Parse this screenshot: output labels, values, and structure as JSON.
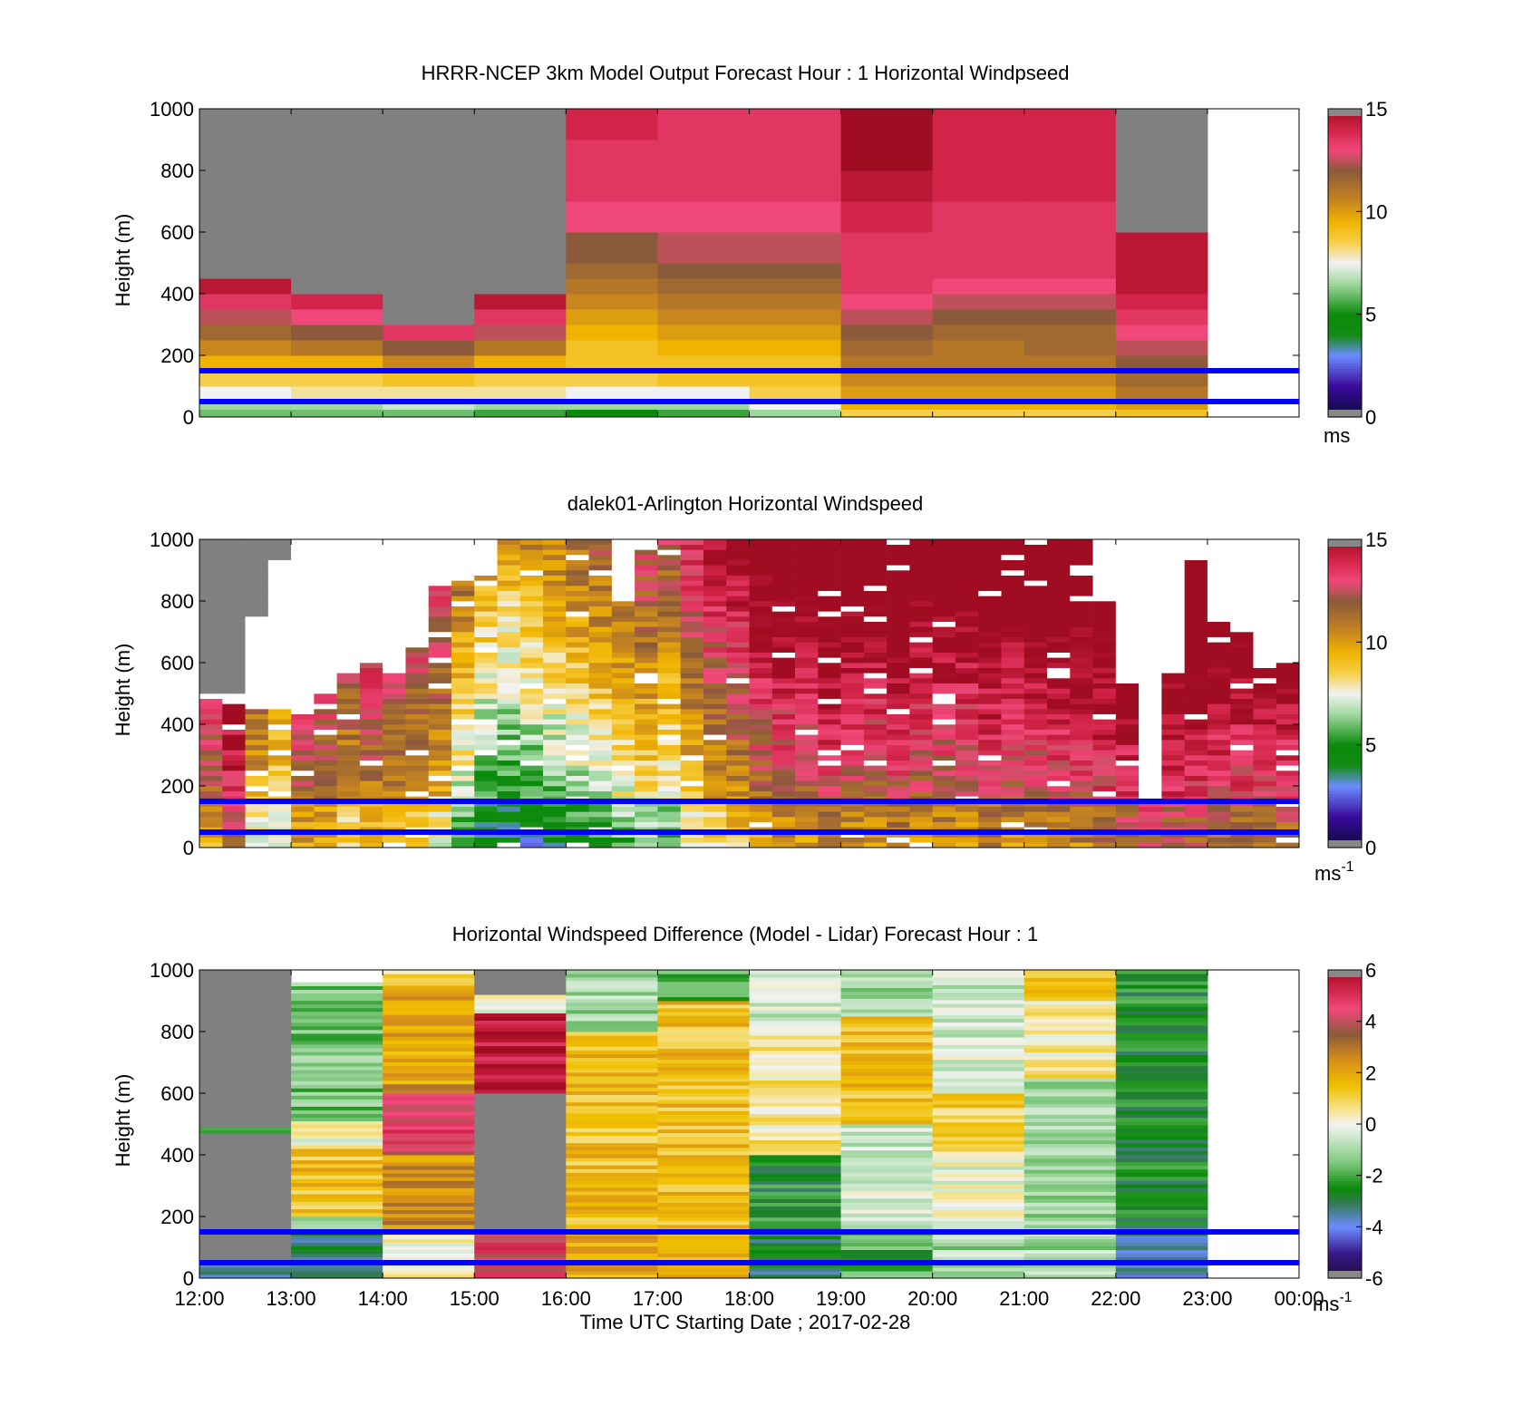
{
  "figure": {
    "xlabel": "Time UTC  Starting Date ; 2017-02-28",
    "x_tick_labels": [
      "12:00",
      "13:00",
      "14:00",
      "15:00",
      "16:00",
      "17:00",
      "18:00",
      "19:00",
      "20:00",
      "21:00",
      "22:00",
      "23:00",
      "00:00"
    ],
    "reference_lines_m": [
      50,
      150
    ],
    "reference_line_color": "#0000ff",
    "missing_color": "#808080"
  },
  "chart_data": [
    {
      "type": "heatmap",
      "title": "HRRR-NCEP 3km Model Output   Forecast Hour : 1 Horizontal Windpseed",
      "ylabel": "Height (m)",
      "xlim": [
        "12:00",
        "00:00"
      ],
      "ylim": [
        0,
        1000
      ],
      "y_ticks": [
        0,
        200,
        400,
        600,
        800,
        1000
      ],
      "colorbar": {
        "min": 0,
        "max": 15,
        "ticks": [
          0,
          5,
          10,
          15
        ],
        "unit": "ms",
        "unit_sup": ""
      },
      "column_hours_utc": [
        "12:00",
        "13:00",
        "14:00",
        "15:00",
        "16:00",
        "17:00",
        "18:00",
        "19:00",
        "20:00",
        "21:00",
        "22:00"
      ],
      "level_tops_m": [
        25,
        50,
        100,
        150,
        200,
        250,
        300,
        350,
        400,
        450,
        500,
        600,
        700,
        800,
        900,
        1000
      ],
      "values_ms": [
        [
          6,
          6.5,
          7.5,
          8.5,
          9.5,
          10.5,
          11.5,
          12.5,
          13.5,
          14.5,
          null,
          null,
          null,
          null,
          null,
          null
        ],
        [
          6,
          6.5,
          8,
          8.5,
          9.5,
          11,
          12,
          13,
          14,
          null,
          null,
          null,
          null,
          null,
          null,
          null
        ],
        [
          6,
          7,
          8,
          9,
          10.5,
          12,
          13.5,
          null,
          null,
          null,
          null,
          null,
          null,
          null,
          null,
          null
        ],
        [
          5.5,
          6.5,
          8,
          8.5,
          9.5,
          11,
          12.5,
          13.5,
          14.5,
          null,
          null,
          null,
          null,
          null,
          null,
          null
        ],
        [
          5,
          6.5,
          7.5,
          8.5,
          9,
          9,
          9.5,
          10,
          10.5,
          11,
          11.5,
          12,
          13,
          13.5,
          13.5,
          14
        ],
        [
          5.5,
          6.5,
          7.5,
          9,
          9,
          9.5,
          10,
          10.5,
          11,
          11.5,
          12,
          12.5,
          13,
          13.5,
          13.5,
          13.5
        ],
        [
          6.5,
          7.5,
          8.5,
          9,
          9,
          9.5,
          10,
          10.5,
          11,
          11.5,
          12,
          12.5,
          13,
          13.5,
          13.5,
          13.5
        ],
        [
          8.5,
          9.5,
          10,
          10.5,
          11,
          11.5,
          12,
          12.5,
          13,
          13.5,
          13.5,
          13.5,
          14,
          14.5,
          15,
          15
        ],
        [
          8.5,
          9.5,
          10,
          10.5,
          11,
          11,
          11.5,
          12,
          12.5,
          13,
          13.5,
          13.5,
          13.5,
          14,
          14,
          14
        ],
        [
          8.5,
          9.5,
          10,
          10.5,
          11,
          11.5,
          11.5,
          12,
          12.5,
          13,
          13.5,
          13.5,
          13.5,
          14,
          14,
          14
        ],
        [
          9,
          10,
          11,
          11.5,
          12,
          12.5,
          13,
          13.5,
          14,
          14.5,
          14.5,
          14.5,
          null,
          null,
          null,
          null
        ]
      ]
    },
    {
      "type": "heatmap",
      "title": "dalek01-Arlington  Horizontal Windspeed",
      "ylabel": "Height (m)",
      "xlim": [
        "12:00",
        "00:00"
      ],
      "ylim": [
        0,
        1000
      ],
      "y_ticks": [
        0,
        200,
        400,
        600,
        800,
        1000
      ],
      "colorbar": {
        "min": 0,
        "max": 15,
        "ticks": [
          0,
          5,
          10,
          15
        ],
        "unit": "ms",
        "unit_sup": "-1"
      },
      "columns_per_hour": 4,
      "profiles": [
        {
          "hour": "12:00",
          "w": 12,
          "top": 480,
          "gap_top": 500
        },
        {
          "hour": "12:15",
          "w": 14,
          "top": 460,
          "gap_top": 500
        },
        {
          "hour": "12:30",
          "w": 10,
          "top": 450,
          "gap_top": 750
        },
        {
          "hour": "12:45",
          "w": 9,
          "top": 440,
          "gap_top": 920
        },
        {
          "hour": "13:00",
          "w": 12,
          "top": 420,
          "gap_top": 1000
        },
        {
          "hour": "13:15",
          "w": 11.5,
          "top": 490,
          "gap_top": 1000
        },
        {
          "hour": "13:30",
          "w": 10.5,
          "top": 560,
          "gap_top": 1000
        },
        {
          "hour": "13:45",
          "w": 11.5,
          "top": 600,
          "gap_top": 1000
        },
        {
          "hour": "14:00",
          "w": 11,
          "top": 560,
          "gap_top": 1000
        },
        {
          "hour": "14:15",
          "w": 10.5,
          "top": 640,
          "gap_top": 1000
        },
        {
          "hour": "14:30",
          "w": 10,
          "top": 850,
          "gap_top": 1000
        },
        {
          "hour": "14:45",
          "w": 7.5,
          "top": 860,
          "gap_top": 1000
        },
        {
          "hour": "15:00",
          "w": 6,
          "top": 870,
          "gap_top": 1000
        },
        {
          "hour": "15:15",
          "w": 5.5,
          "top": 1000,
          "gap_top": 1000
        },
        {
          "hour": "15:30",
          "w": 6,
          "top": 1000,
          "gap_top": 1000
        },
        {
          "hour": "15:45",
          "w": 6.5,
          "top": 1000,
          "gap_top": 1000
        },
        {
          "hour": "16:00",
          "w": 7,
          "top": 1000,
          "gap_top": 1000
        },
        {
          "hour": "16:15",
          "w": 7.5,
          "top": 1000,
          "gap_top": 1000
        },
        {
          "hour": "16:30",
          "w": 8,
          "top": 790,
          "gap_top": 1000
        },
        {
          "hour": "16:45",
          "w": 8.5,
          "top": 960,
          "gap_top": 1000
        },
        {
          "hour": "17:00",
          "w": 8,
          "top": 1000,
          "gap_top": 1000
        },
        {
          "hour": "17:15",
          "w": 9.5,
          "top": 1000,
          "gap_top": 1000
        },
        {
          "hour": "17:30",
          "w": 10.5,
          "top": 1000,
          "gap_top": 1000
        },
        {
          "hour": "17:45",
          "w": 11,
          "top": 1000,
          "gap_top": 1000
        },
        {
          "hour": "18:00",
          "w": 12,
          "top": 1000,
          "gap_top": 1000
        },
        {
          "hour": "18:15",
          "w": 12.5,
          "top": 1000,
          "gap_top": 1000
        },
        {
          "hour": "18:30",
          "w": 12.5,
          "top": 1000,
          "gap_top": 1000
        },
        {
          "hour": "18:45",
          "w": 13,
          "top": 1000,
          "gap_top": 1000
        },
        {
          "hour": "19:00",
          "w": 12.5,
          "top": 1000,
          "gap_top": 1000
        },
        {
          "hour": "19:15",
          "w": 12.5,
          "top": 1000,
          "gap_top": 1000
        },
        {
          "hour": "19:30",
          "w": 13,
          "top": 1000,
          "gap_top": 1000
        },
        {
          "hour": "19:45",
          "w": 12.5,
          "top": 1000,
          "gap_top": 1000
        },
        {
          "hour": "20:00",
          "w": 12.5,
          "top": 1000,
          "gap_top": 1000
        },
        {
          "hour": "20:15",
          "w": 12.5,
          "top": 1000,
          "gap_top": 1000
        },
        {
          "hour": "20:30",
          "w": 13,
          "top": 1000,
          "gap_top": 1000
        },
        {
          "hour": "20:45",
          "w": 12.5,
          "top": 1000,
          "gap_top": 1000
        },
        {
          "hour": "21:00",
          "w": 13,
          "top": 1000,
          "gap_top": 1000
        },
        {
          "hour": "21:15",
          "w": 13,
          "top": 1000,
          "gap_top": 1000
        },
        {
          "hour": "21:30",
          "w": 13,
          "top": 1000,
          "gap_top": 1000
        },
        {
          "hour": "21:45",
          "w": 13.5,
          "top": 800,
          "gap_top": 1000
        },
        {
          "hour": "22:00",
          "w": 14,
          "top": 530,
          "gap_top": 1000
        },
        {
          "hour": "22:15",
          "w": 14.5,
          "top": 150,
          "gap_top": 1000
        },
        {
          "hour": "22:30",
          "w": 14,
          "top": 560,
          "gap_top": 1000
        },
        {
          "hour": "22:45",
          "w": 14,
          "top": 920,
          "gap_top": 1000
        },
        {
          "hour": "23:00",
          "w": 13.5,
          "top": 730,
          "gap_top": 1000
        },
        {
          "hour": "23:15",
          "w": 13.5,
          "top": 690,
          "gap_top": 1000
        },
        {
          "hour": "23:30",
          "w": 13.5,
          "top": 570,
          "gap_top": 1000
        },
        {
          "hour": "23:45",
          "w": 13.5,
          "top": 590,
          "gap_top": 1000
        }
      ]
    },
    {
      "type": "heatmap",
      "title": "Horizontal Windspeed Difference (Model - Lidar) Forecast Hour : 1",
      "ylabel": "Height (m)",
      "xlim": [
        "12:00",
        "00:00"
      ],
      "ylim": [
        0,
        1000
      ],
      "y_ticks": [
        0,
        200,
        400,
        600,
        800,
        1000
      ],
      "colorbar": {
        "min": -6,
        "max": 6,
        "ticks": [
          -6,
          -4,
          -2,
          0,
          2,
          4,
          6
        ],
        "unit": "ms",
        "unit_sup": "-1"
      },
      "column_hours_utc": [
        "12:00",
        "13:00",
        "14:00",
        "15:00",
        "16:00",
        "17:00",
        "18:00",
        "19:00",
        "20:00",
        "21:00",
        "22:00"
      ],
      "segments": [
        [
          [
            0,
            60,
            -3
          ],
          [
            60,
            470,
            null
          ],
          [
            470,
            490,
            -2
          ],
          [
            490,
            1000,
            null
          ]
        ],
        [
          [
            0,
            150,
            -3
          ],
          [
            150,
            200,
            -1
          ],
          [
            200,
            420,
            1.5
          ],
          [
            420,
            510,
            0
          ],
          [
            510,
            960,
            -1.5
          ]
        ],
        [
          [
            0,
            150,
            0
          ],
          [
            150,
            400,
            2.5
          ],
          [
            400,
            600,
            4.5
          ],
          [
            600,
            630,
            3
          ],
          [
            630,
            950,
            2
          ],
          [
            950,
            1000,
            1
          ]
        ],
        [
          [
            0,
            150,
            4.5
          ],
          [
            150,
            600,
            null
          ],
          [
            600,
            860,
            5.5
          ],
          [
            860,
            920,
            0
          ],
          [
            920,
            1000,
            null
          ]
        ],
        [
          [
            0,
            150,
            2
          ],
          [
            150,
            800,
            1.5
          ],
          [
            800,
            1000,
            -1
          ]
        ],
        [
          [
            0,
            150,
            1.5
          ],
          [
            150,
            900,
            1.5
          ],
          [
            900,
            1000,
            -2
          ]
        ],
        [
          [
            0,
            150,
            -3
          ],
          [
            150,
            400,
            -2.5
          ],
          [
            400,
            800,
            0.5
          ],
          [
            800,
            1000,
            -0.5
          ]
        ],
        [
          [
            0,
            150,
            -2
          ],
          [
            150,
            500,
            -0.5
          ],
          [
            500,
            850,
            1.5
          ],
          [
            850,
            1000,
            -1
          ]
        ],
        [
          [
            0,
            150,
            -1
          ],
          [
            150,
            400,
            0
          ],
          [
            400,
            600,
            1
          ],
          [
            600,
            1000,
            -0.5
          ]
        ],
        [
          [
            0,
            150,
            -1
          ],
          [
            150,
            650,
            -1
          ],
          [
            650,
            900,
            0.5
          ],
          [
            900,
            1000,
            1.5
          ]
        ],
        [
          [
            0,
            150,
            -3.5
          ],
          [
            150,
            1000,
            -2.5
          ]
        ]
      ]
    }
  ]
}
